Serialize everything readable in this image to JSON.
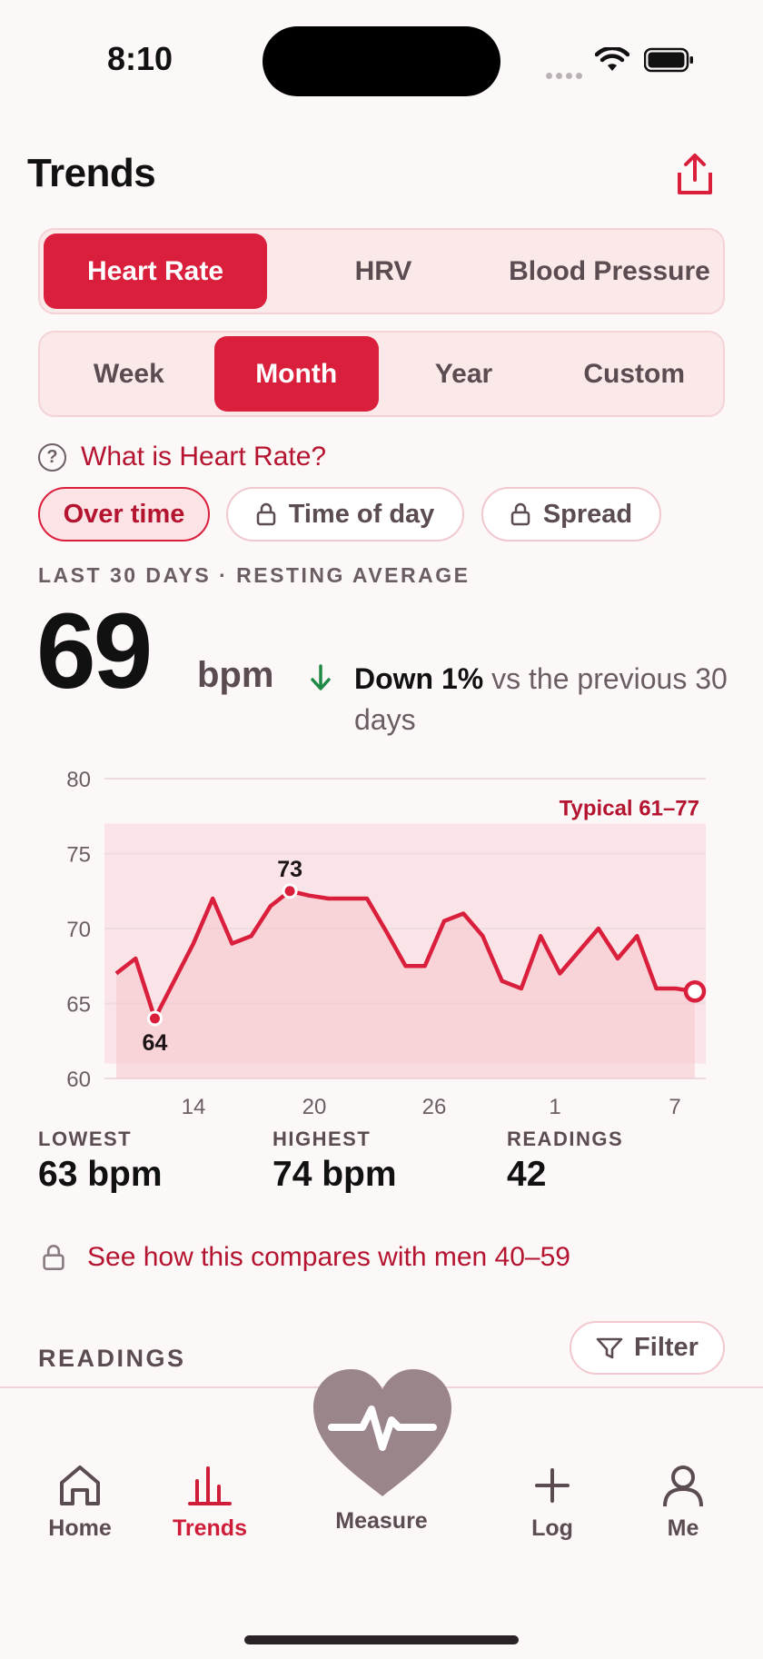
{
  "status_bar": {
    "time": "8:10"
  },
  "header": {
    "title": "Trends"
  },
  "metric_tabs": [
    {
      "label": "Heart Rate",
      "active": true
    },
    {
      "label": "HRV",
      "active": false
    },
    {
      "label": "Blood Pressure",
      "active": false
    }
  ],
  "range_tabs": [
    {
      "label": "Week",
      "active": false
    },
    {
      "label": "Month",
      "active": true
    },
    {
      "label": "Year",
      "active": false
    },
    {
      "label": "Custom",
      "active": false
    }
  ],
  "help_link": "What is Heart Rate?",
  "view_chips": [
    {
      "label": "Over time",
      "active": true,
      "locked": false
    },
    {
      "label": "Time of day",
      "active": false,
      "locked": true
    },
    {
      "label": "Spread",
      "active": false,
      "locked": true
    }
  ],
  "summary": {
    "caption": "LAST 30 DAYS · RESTING AVERAGE",
    "value": "69",
    "unit": "bpm",
    "change_bold": "Down 1%",
    "change_rest": " vs the previous 30 days"
  },
  "chart_data": {
    "type": "area",
    "ylim": [
      60,
      80
    ],
    "y_ticks": [
      "80",
      "75",
      "70",
      "65",
      "60"
    ],
    "x_tick_labels": [
      "14",
      "20",
      "26",
      "1",
      "7"
    ],
    "typical_band": {
      "label": "Typical 61–77",
      "low": 61,
      "high": 77
    },
    "series": [
      {
        "values": [
          67,
          68,
          64,
          66.5,
          69,
          72,
          69,
          69.5,
          71.5,
          72.5,
          72.2,
          72,
          72,
          72,
          69.8,
          67.5,
          67.5,
          70.5,
          71,
          69.5,
          66.5,
          66,
          69.5,
          67,
          68.5,
          70,
          68,
          69.5,
          66,
          66,
          65.8
        ]
      }
    ],
    "annotations": [
      {
        "label": "64",
        "index": 2
      },
      {
        "label": "73",
        "index": 9
      }
    ]
  },
  "stats": [
    {
      "label": "LOWEST",
      "value": "63 bpm"
    },
    {
      "label": "HIGHEST",
      "value": "74 bpm"
    },
    {
      "label": "READINGS",
      "value": "42"
    }
  ],
  "compare_link": "See how this compares with men 40–59",
  "readings": {
    "heading": "READINGS",
    "filter_label": "Filter"
  },
  "tab_bar": {
    "home": "Home",
    "trends": "Trends",
    "measure": "Measure",
    "log": "Log",
    "me": "Me"
  },
  "colors": {
    "accent": "#d91f3c",
    "band": "#fbe4e7",
    "text": "#1c1416",
    "positive": "#1e8a46"
  }
}
